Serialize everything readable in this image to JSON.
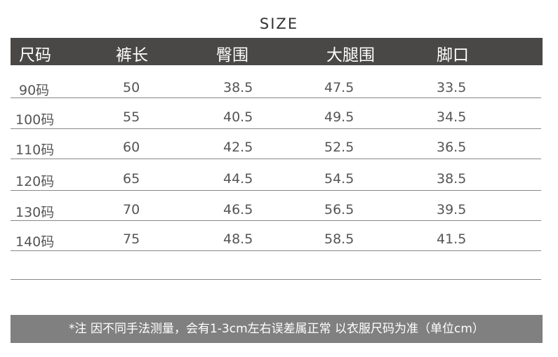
{
  "title": "SIZE",
  "headers": [
    "尺码",
    "裤长",
    "臀围",
    "大腿围",
    "脚口"
  ],
  "rows": [
    [
      "90码",
      "50",
      "38.5",
      "47.5",
      "33.5"
    ],
    [
      "100码",
      "55",
      "40.5",
      "49.5",
      "34.5"
    ],
    [
      "110码",
      "60",
      "42.5",
      "52.5",
      "36.5"
    ],
    [
      "120码",
      "65",
      "44.5",
      "54.5",
      "38.5"
    ],
    [
      "130码",
      "70",
      "46.5",
      "56.5",
      "39.5"
    ],
    [
      "140码",
      "75",
      "48.5",
      "58.5",
      "41.5"
    ]
  ],
  "note": "*注  因不同手法测量，会有1-3cm左右误差属正常  以衣服尺码为准（单位cm）",
  "colors": {
    "header_bg": "#4a4847",
    "footer_bg": "#808080"
  }
}
